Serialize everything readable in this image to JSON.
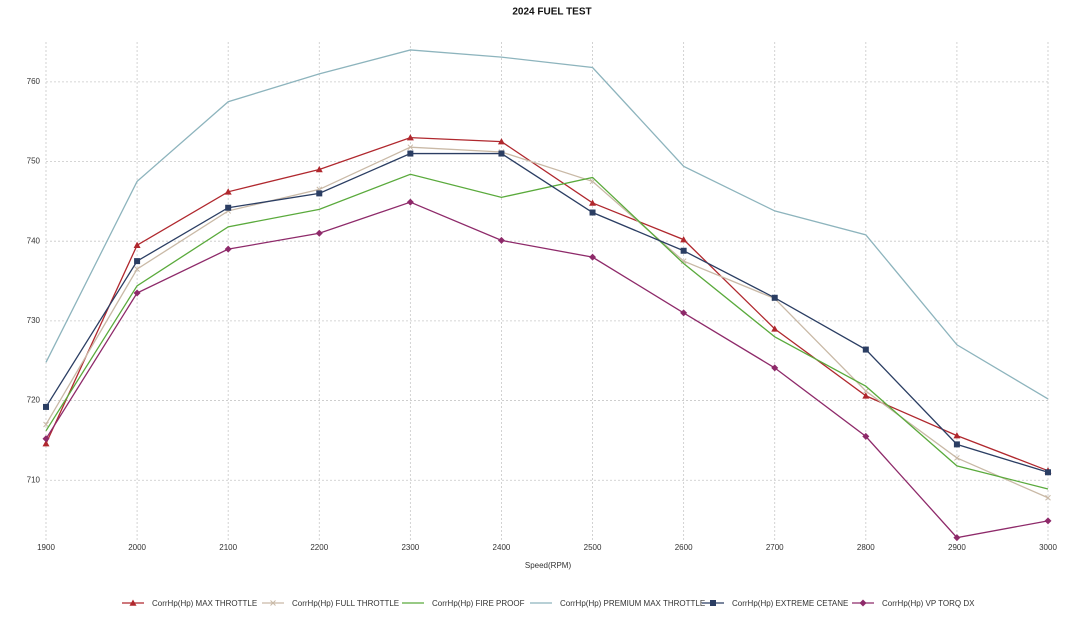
{
  "chart_data": {
    "type": "line",
    "title": "2024 FUEL TEST",
    "x_label": "Speed(RPM)",
    "x": [
      1900,
      2000,
      2100,
      2200,
      2300,
      2400,
      2500,
      2600,
      2700,
      2800,
      2900,
      3000
    ],
    "xlim": [
      1900,
      3000
    ],
    "xticks": [
      1900,
      2000,
      2100,
      2200,
      2300,
      2400,
      2500,
      2600,
      2700,
      2800,
      2900,
      3000
    ],
    "ylim": [
      702.5,
      765
    ],
    "yticks": [
      710,
      720,
      730,
      740,
      750,
      760
    ],
    "grid": true,
    "legend": "bottom",
    "series": [
      {
        "name": "CorrHp(Hp) MAX THROTTLE",
        "color": "#b0282e",
        "marker": "triangle",
        "values": [
          714.6,
          739.5,
          746.2,
          749,
          753,
          752.5,
          744.8,
          740.2,
          729,
          720.6,
          715.6,
          711.2
        ]
      },
      {
        "name": "CorrHp(Hp) FULL THROTTLE",
        "color": "#c9b9a6",
        "marker": "cross",
        "values": [
          717,
          736.5,
          743.8,
          746.5,
          751.8,
          751.2,
          747.5,
          737.5,
          732.8,
          721.2,
          712.8,
          707.8
        ]
      },
      {
        "name": "CorrHp(Hp) FIRE PROOF",
        "color": "#5aaa3c",
        "marker": "none",
        "values": [
          716.2,
          734.4,
          741.8,
          744,
          748.4,
          745.5,
          748,
          737.2,
          728,
          721.8,
          711.8,
          708.9
        ]
      },
      {
        "name": "CorrHp(Hp) PREMIUM MAX THROTTLE",
        "color": "#8db4bd",
        "marker": "none",
        "values": [
          724.8,
          747.5,
          757.5,
          761,
          764,
          763.1,
          761.8,
          749.4,
          743.8,
          740.8,
          727,
          720.2
        ]
      },
      {
        "name": "CorrHp(Hp) EXTREME CETANE",
        "color": "#2b3e63",
        "marker": "square",
        "values": [
          719.2,
          737.5,
          744.2,
          746,
          751,
          751,
          743.6,
          738.8,
          732.9,
          726.4,
          714.5,
          711
        ]
      },
      {
        "name": "CorrHp(Hp) VP TORQ DX",
        "color": "#8e2a6a",
        "marker": "diamond",
        "values": [
          715.2,
          733.5,
          739,
          741,
          744.9,
          740.1,
          738,
          731,
          724.1,
          715.5,
          702.8,
          704.9
        ]
      }
    ]
  }
}
